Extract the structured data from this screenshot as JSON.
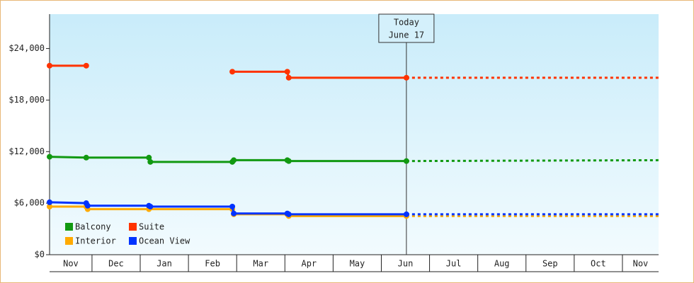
{
  "chart_data": {
    "type": "line",
    "categories": [
      "Nov",
      "Dec",
      "Jan",
      "Feb",
      "Mar",
      "Apr",
      "May",
      "Jun",
      "Jul",
      "Aug",
      "Sep",
      "Oct",
      "Nov"
    ],
    "xlim": [
      0.12,
      12.75
    ],
    "ylim": [
      0,
      28000
    ],
    "yticks": [
      {
        "value": 0,
        "label": "$0"
      },
      {
        "value": 6000,
        "label": "$6,000"
      },
      {
        "value": 12000,
        "label": "$12,000"
      },
      {
        "value": 18000,
        "label": "$18,000"
      },
      {
        "value": 24000,
        "label": "$24,000"
      }
    ],
    "today": {
      "x": 7.52,
      "label": "Today",
      "date": "June 17"
    },
    "legend": "bottom-left",
    "series": [
      {
        "name": "Balcony",
        "color": "#119911",
        "x": [
          0.12,
          0.88,
          2.18,
          2.21,
          3.91,
          3.94,
          5.05,
          5.08,
          7.52,
          12.75
        ],
        "values": [
          11400,
          11300,
          11300,
          10800,
          10800,
          11000,
          11000,
          10900,
          10900,
          11000
        ]
      },
      {
        "name": "Suite",
        "color": "#ff3300",
        "x": [
          0.12,
          0.88,
          null,
          3.91,
          5.05,
          5.08,
          7.52,
          12.75
        ],
        "values": [
          22000,
          22000,
          null,
          21300,
          21300,
          20600,
          20600,
          20600
        ]
      },
      {
        "name": "Interior",
        "color": "#ffaa00",
        "x": [
          0.12,
          0.88,
          0.91,
          2.18,
          3.91,
          3.94,
          5.05,
          5.08,
          7.52,
          12.75
        ],
        "values": [
          5600,
          5600,
          5300,
          5300,
          5300,
          4700,
          4700,
          4500,
          4500,
          4500
        ]
      },
      {
        "name": "Ocean View",
        "color": "#0033ff",
        "x": [
          0.12,
          0.88,
          0.91,
          2.18,
          2.21,
          3.91,
          3.94,
          5.05,
          5.08,
          7.52,
          12.75
        ],
        "values": [
          6100,
          6000,
          5700,
          5700,
          5600,
          5600,
          4800,
          4800,
          4700,
          4700,
          4700
        ]
      }
    ]
  }
}
